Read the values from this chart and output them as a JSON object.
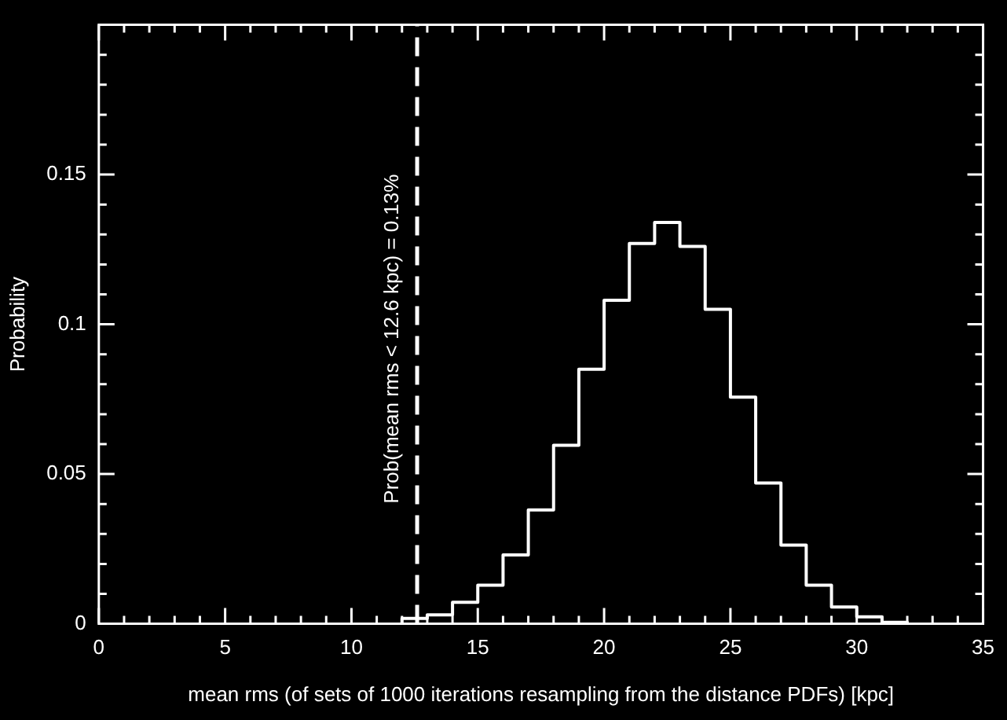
{
  "chart_data": {
    "type": "histogram",
    "xlabel": "mean rms (of sets of 1000 iterations resampling from the distance PDFs) [kpc]",
    "ylabel": "Probability",
    "bins": [
      12,
      13,
      14,
      15,
      16,
      17,
      18,
      19,
      20,
      21,
      22,
      23,
      24,
      25,
      26,
      27,
      28,
      29,
      30,
      31,
      32
    ],
    "values": [
      0.0018,
      0.003,
      0.0072,
      0.0129,
      0.023,
      0.038,
      0.0596,
      0.085,
      0.108,
      0.127,
      0.134,
      0.126,
      0.105,
      0.0757,
      0.047,
      0.0263,
      0.0129,
      0.0056,
      0.0023,
      0.0005
    ],
    "color": "#ffffff",
    "xlim": [
      0,
      35
    ],
    "xticks": [
      0,
      {
        "value": 1,
        "label": null
      },
      {
        "value": 2,
        "label": null
      },
      {
        "value": 3,
        "label": null
      },
      {
        "value": 4,
        "label": null
      },
      5,
      {
        "value": 6,
        "label": null
      },
      {
        "value": 7,
        "label": null
      },
      {
        "value": 8,
        "label": null
      },
      {
        "value": 9,
        "label": null
      },
      10,
      {
        "value": 11,
        "label": null
      },
      {
        "value": 12,
        "label": null
      },
      {
        "value": 13,
        "label": null
      },
      {
        "value": 14,
        "label": null
      },
      15,
      {
        "value": 16,
        "label": null
      },
      {
        "value": 17,
        "label": null
      },
      {
        "value": 18,
        "label": null
      },
      {
        "value": 19,
        "label": null
      },
      20,
      {
        "value": 21,
        "label": null
      },
      {
        "value": 22,
        "label": null
      },
      {
        "value": 23,
        "label": null
      },
      {
        "value": 24,
        "label": null
      },
      25,
      {
        "value": 26,
        "label": null
      },
      {
        "value": 27,
        "label": null
      },
      {
        "value": 28,
        "label": null
      },
      {
        "value": 29,
        "label": null
      },
      30,
      {
        "value": 31,
        "label": null
      },
      {
        "value": 32,
        "label": null
      },
      {
        "value": 33,
        "label": null
      },
      {
        "value": 34,
        "label": null
      },
      35
    ],
    "ylim": [
      0,
      0.2
    ],
    "yticks": [
      0,
      {
        "value": 0.01,
        "label": null
      },
      {
        "value": 0.02,
        "label": null
      },
      {
        "value": 0.03,
        "label": null
      },
      {
        "value": 0.04,
        "label": null
      },
      0.05,
      {
        "value": 0.06,
        "label": null
      },
      {
        "value": 0.07,
        "label": null
      },
      {
        "value": 0.08,
        "label": null
      },
      {
        "value": 0.09,
        "label": null
      },
      0.1,
      {
        "value": 0.11,
        "label": null
      },
      {
        "value": 0.12,
        "label": null
      },
      {
        "value": 0.13,
        "label": null
      },
      {
        "value": 0.14,
        "label": null
      },
      0.15,
      {
        "value": 0.16,
        "label": null
      },
      {
        "value": 0.17,
        "label": null
      },
      {
        "value": 0.18,
        "label": null
      },
      {
        "value": 0.19,
        "label": null
      }
    ],
    "ref_lines": [
      {
        "axis": "x",
        "value": 12.6,
        "label": "Prob(mean rms < 12.6 kpc) = 0.13%",
        "line_style": "dashed",
        "color": "#ffffff"
      }
    ]
  }
}
